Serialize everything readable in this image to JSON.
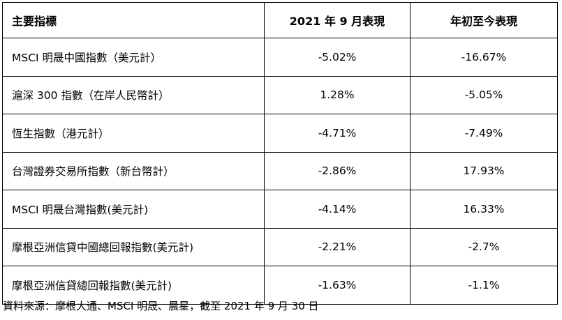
{
  "table": {
    "headers": {
      "indicator": "主要指標",
      "september": "2021 年 9 月表現",
      "ytd": "年初至今表現"
    },
    "rows": [
      {
        "name": "MSCI 明晟中國指數（美元計）",
        "september": "-5.02%",
        "ytd": "-16.67%"
      },
      {
        "name": "滬深 300 指數（在岸人民幣計）",
        "september": "1.28%",
        "ytd": "-5.05%"
      },
      {
        "name": "恆生指數（港元計）",
        "september": "-4.71%",
        "ytd": "-7.49%"
      },
      {
        "name": "台灣證券交易所指數（新台幣計）",
        "september": "-2.86%",
        "ytd": "17.93%"
      },
      {
        "name": "MSCI 明晟台灣指數(美元計)",
        "september": "-4.14%",
        "ytd": "16.33%"
      },
      {
        "name": "摩根亞洲信貸中國總回報指數(美元計)",
        "september": "-2.21%",
        "ytd": "-2.7%"
      },
      {
        "name": "摩根亞洲信貸總回報指數(美元計)",
        "september": "-1.63%",
        "ytd": "-1.1%"
      }
    ]
  },
  "footnote": "資料來源：摩根大通、MSCI 明晟、晨星，截至 2021 年 9 月 30 日"
}
